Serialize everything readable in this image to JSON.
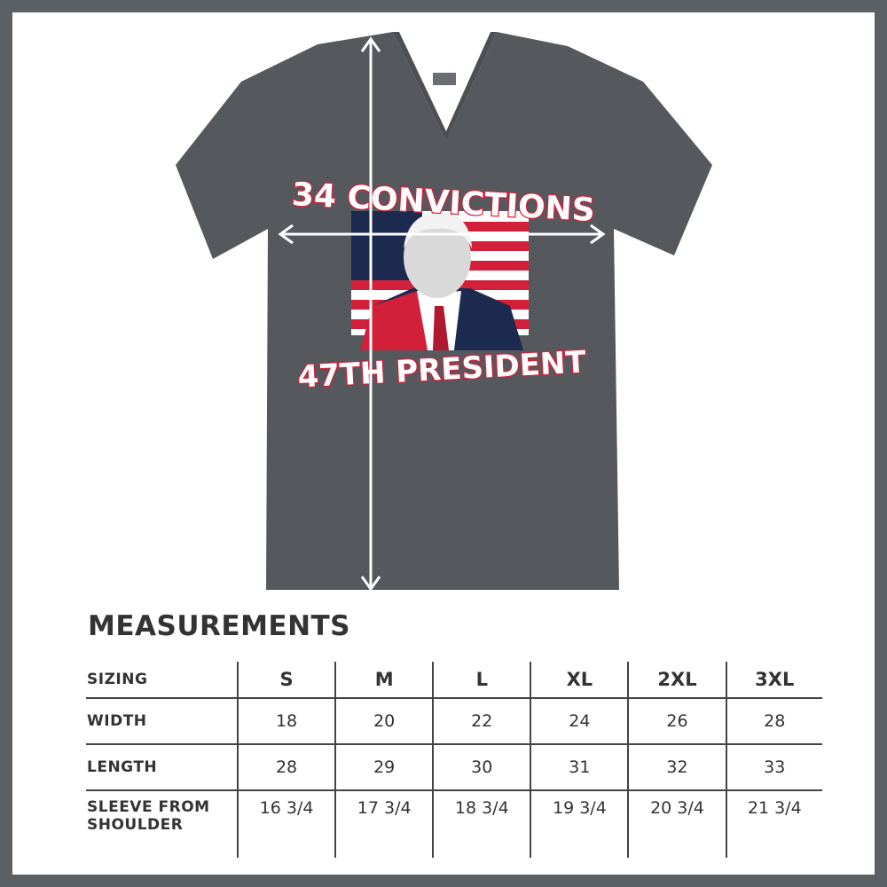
{
  "product": {
    "shirt_color": "#55595d",
    "design": {
      "top_text": "34 CONVICTIONS",
      "bottom_text": "47TH PRESIDENT",
      "accent_red": "#d3203a",
      "navy": "#1c2a4f"
    }
  },
  "measurements": {
    "title": "MEASUREMENTS",
    "header_label": "SIZING",
    "sizes": [
      "S",
      "M",
      "L",
      "XL",
      "2XL",
      "3XL"
    ],
    "rows": [
      {
        "label": "WIDTH",
        "values": [
          "18",
          "20",
          "22",
          "24",
          "26",
          "28"
        ]
      },
      {
        "label": "LENGTH",
        "values": [
          "28",
          "29",
          "30",
          "31",
          "32",
          "33"
        ]
      },
      {
        "label_line1": "SLEEVE FROM",
        "label_line2": "SHOULDER",
        "values": [
          "16 3/4",
          "17 3/4",
          "18 3/4",
          "19 3/4",
          "20 3/4",
          "21 3/4"
        ]
      }
    ]
  }
}
